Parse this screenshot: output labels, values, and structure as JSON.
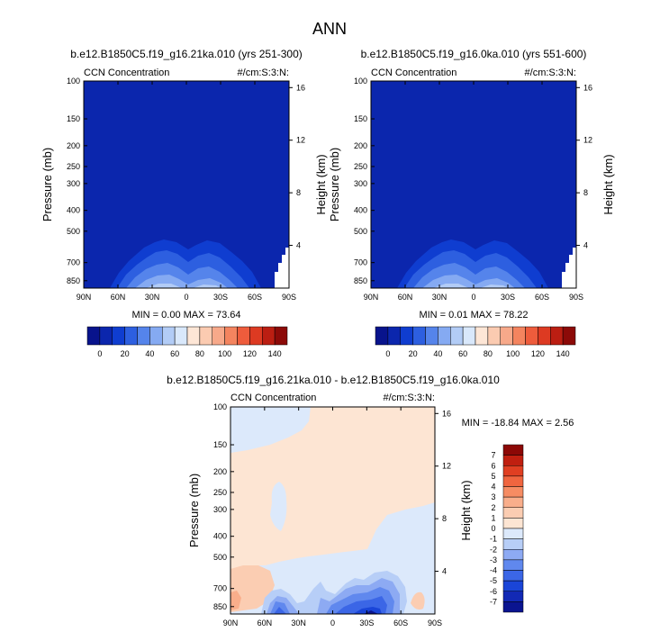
{
  "chart_data": {
    "type": "heatmap",
    "title": "ANN",
    "colors": {
      "upper_scale": [
        "#08138c",
        "#0b26ad",
        "#0f3dd0",
        "#2d5fe0",
        "#5584eb",
        "#85aaf2",
        "#b2ccf6",
        "#d9e8fb",
        "#fde6d6",
        "#fbcbb1",
        "#f7a98a",
        "#f4845f",
        "#ee5c3c",
        "#dd3a22",
        "#bb1e12",
        "#8c0a08"
      ],
      "lower_scale": [
        "#0a1490",
        "#1229b5",
        "#1a45d8",
        "#3b66e6",
        "#6088ee",
        "#8daaf3",
        "#b7cef7",
        "#dce9fb",
        "#fde5d3",
        "#fbcdb2",
        "#f9ae8b",
        "#f68c63",
        "#f0653f",
        "#e03f22",
        "#c01f10",
        "#8c0806"
      ],
      "bg_upper": "#0b26ad",
      "bg_lower_neg": "#dce9fb",
      "bg_lower_pos": "#fde5d3"
    },
    "panels": [
      {
        "title": "b.e12.B1850C5.f19_g16.21ka.010 (yrs 251-300)",
        "left_label": "CCN Concentration",
        "right_label": "#/cm:S:3:N:",
        "ylabel": "Pressure (mb)",
        "ylabel_right": "Height (km)",
        "x_ticks": [
          "90N",
          "60N",
          "30N",
          "0",
          "30S",
          "60S",
          "90S"
        ],
        "y_ticks": [
          "100",
          "150",
          "200",
          "250",
          "300",
          "400",
          "500",
          "700",
          "850"
        ],
        "y_ticks_right": [
          "4",
          "8",
          "12",
          "16"
        ],
        "stats": "MIN =  0.00  MAX = 73.64",
        "colorbar_ticks": [
          "0",
          "20",
          "40",
          "60",
          "80",
          "100",
          "120",
          "140"
        ],
        "min": 0.0,
        "max": 73.64
      },
      {
        "title": "b.e12.B1850C5.f19_g16.0ka.010 (yrs 551-600)",
        "left_label": "CCN Concentration",
        "right_label": "#/cm:S:3:N:",
        "ylabel": "Pressure (mb)",
        "ylabel_right": "Height (km)",
        "x_ticks": [
          "90N",
          "60N",
          "30N",
          "0",
          "30S",
          "60S",
          "90S"
        ],
        "y_ticks": [
          "100",
          "150",
          "200",
          "250",
          "300",
          "400",
          "500",
          "700",
          "850"
        ],
        "y_ticks_right": [
          "4",
          "8",
          "12",
          "16"
        ],
        "stats": "MIN =  0.01  MAX = 78.22",
        "colorbar_ticks": [
          "0",
          "20",
          "40",
          "60",
          "80",
          "100",
          "120",
          "140"
        ],
        "min": 0.01,
        "max": 78.22
      },
      {
        "title": "b.e12.B1850C5.f19_g16.21ka.010 - b.e12.B1850C5.f19_g16.0ka.010",
        "left_label": "CCN Concentration",
        "right_label": "#/cm:S:3:N:",
        "ylabel": "Pressure (mb)",
        "ylabel_right": "Height (km)",
        "x_ticks": [
          "90N",
          "60N",
          "30N",
          "0",
          "30S",
          "60S",
          "90S"
        ],
        "y_ticks": [
          "100",
          "150",
          "200",
          "250",
          "300",
          "400",
          "500",
          "700",
          "850"
        ],
        "y_ticks_right": [
          "4",
          "8",
          "12",
          "16"
        ],
        "stats": "MIN = -18.84  MAX =   2.56",
        "colorbar_ticks": [
          "7",
          "6",
          "5",
          "4",
          "3",
          "2",
          "1",
          "0",
          "-1",
          "-2",
          "-3",
          "-4",
          "-5",
          "-6",
          "-7"
        ],
        "min": -18.84,
        "max": 2.56
      }
    ]
  }
}
